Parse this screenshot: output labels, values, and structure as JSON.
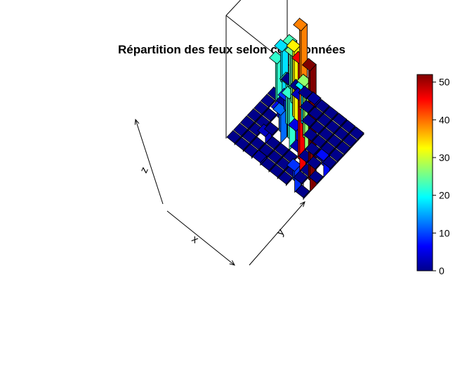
{
  "chart_data": {
    "type": "bar3d",
    "title": "Répartition des feux selon coordonnées",
    "xlabel": "x",
    "ylabel": "y",
    "zlabel": "z",
    "zlim": [
      0,
      53
    ],
    "grid": false,
    "colorbar": {
      "position": "right",
      "ticks": [
        0,
        10,
        20,
        30,
        40,
        50
      ],
      "range": [
        0,
        52
      ],
      "palette": [
        "#00008B",
        "#0000FF",
        "#0080FF",
        "#00FFFF",
        "#80FF80",
        "#FFFF00",
        "#FF8000",
        "#FF0000",
        "#800000"
      ]
    },
    "grid_values": [
      [
        0,
        18,
        0,
        0,
        0,
        0,
        0,
        0,
        0
      ],
      [
        0,
        23,
        0,
        22,
        0,
        0,
        0,
        0,
        0
      ],
      [
        0,
        3,
        25,
        9,
        7,
        0,
        3,
        0,
        0
      ],
      [
        1,
        0,
        39,
        33,
        22,
        12,
        0,
        0,
        1
      ],
      [
        0,
        0,
        0,
        19,
        5,
        22,
        0,
        0,
        0
      ],
      [
        0,
        0,
        0,
        0,
        27,
        2,
        0,
        0,
        0
      ],
      [
        0,
        0,
        0,
        0,
        0,
        0,
        46,
        0,
        0
      ],
      [
        0,
        0,
        0,
        0,
        0,
        0,
        0,
        0,
        9
      ],
      [
        0,
        0,
        0,
        0,
        0,
        7,
        0,
        52,
        0
      ]
    ]
  }
}
